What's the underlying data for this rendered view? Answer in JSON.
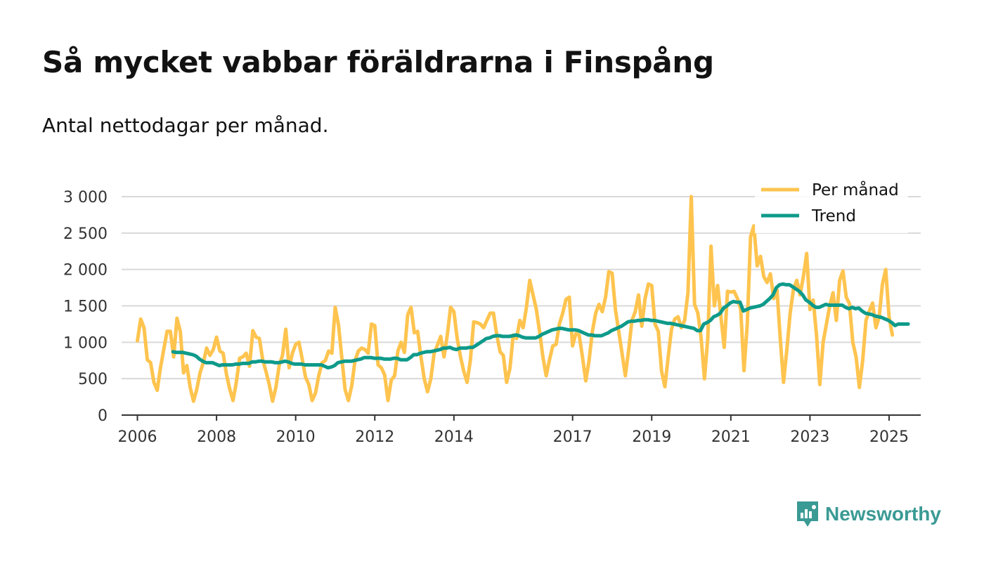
{
  "title": "Så mycket vabbar föräldrarna i Finspång",
  "subtitle": "Antal nettodagar per månad.",
  "branding": {
    "name": "Newsworthy",
    "color": "#3a9a94"
  },
  "chart_data": {
    "type": "line",
    "title": "Så mycket vabbar föräldrarna i Finspång",
    "subtitle": "Antal nettodagar per månad.",
    "xlabel": "",
    "ylabel": "",
    "ylim": [
      0,
      3000
    ],
    "yticks": [
      0,
      500,
      1000,
      1500,
      2000,
      2500,
      3000
    ],
    "ytick_labels": [
      "0",
      "500",
      "1 000",
      "1 500",
      "2 000",
      "2 500",
      "3 000"
    ],
    "xlim": [
      2005.6,
      2025.8
    ],
    "xticks": [
      2006,
      2008,
      2010,
      2012,
      2014,
      2017,
      2019,
      2021,
      2023,
      2025
    ],
    "xtick_labels": [
      "2006",
      "2008",
      "2010",
      "2012",
      "2014",
      "2017",
      "2019",
      "2021",
      "2023",
      "2025"
    ],
    "legend_position": "top-right",
    "grid": true,
    "series": [
      {
        "name": "Per månad",
        "color": "#fec44f",
        "x_start": 2006.0,
        "x_step": 0.08333,
        "values": [
          1020,
          1320,
          1200,
          760,
          720,
          450,
          340,
          650,
          900,
          1150,
          1150,
          800,
          1330,
          1150,
          580,
          680,
          380,
          190,
          350,
          580,
          720,
          920,
          820,
          900,
          1070,
          880,
          850,
          560,
          360,
          200,
          450,
          780,
          800,
          850,
          670,
          1160,
          1070,
          1050,
          760,
          600,
          420,
          190,
          380,
          680,
          820,
          1180,
          650,
          850,
          970,
          1000,
          770,
          520,
          420,
          200,
          300,
          540,
          720,
          750,
          880,
          850,
          1480,
          1240,
          790,
          350,
          200,
          400,
          750,
          880,
          920,
          900,
          850,
          1250,
          1230,
          690,
          650,
          550,
          200,
          480,
          540,
          880,
          1000,
          860,
          1380,
          1480,
          1130,
          1150,
          800,
          500,
          320,
          500,
          850,
          960,
          1080,
          800,
          1100,
          1480,
          1420,
          1050,
          800,
          600,
          450,
          750,
          1280,
          1270,
          1250,
          1200,
          1300,
          1400,
          1400,
          1100,
          870,
          820,
          450,
          640,
          1100,
          1050,
          1300,
          1200,
          1480,
          1850,
          1650,
          1450,
          1150,
          800,
          540,
          760,
          950,
          970,
          1250,
          1400,
          1590,
          1620,
          950,
          1120,
          1100,
          800,
          470,
          750,
          1150,
          1400,
          1520,
          1420,
          1620,
          1970,
          1950,
          1450,
          1150,
          850,
          540,
          890,
          1300,
          1420,
          1650,
          1220,
          1600,
          1800,
          1780,
          1250,
          1150,
          600,
          390,
          800,
          1180,
          1320,
          1350,
          1200,
          1300,
          1680,
          3000,
          1520,
          1400,
          1050,
          500,
          1050,
          2320,
          1500,
          1780,
          1350,
          930,
          1700,
          1690,
          1700,
          1600,
          1450,
          610,
          1250,
          2450,
          2600,
          2050,
          2180,
          1900,
          1820,
          1940,
          1600,
          1720,
          1050,
          450,
          900,
          1400,
          1730,
          1850,
          1650,
          1900,
          2220,
          1450,
          1580,
          1100,
          420,
          1000,
          1250,
          1500,
          1680,
          1300,
          1850,
          1980,
          1620,
          1530,
          1000,
          800,
          380,
          750,
          1300,
          1430,
          1540,
          1200,
          1350,
          1800,
          2000,
          1350,
          1100
        ]
      },
      {
        "name": "Trend",
        "color": "#0e9a8a",
        "x_start": 2006.9,
        "x_step": 0.08333,
        "values": [
          870,
          860,
          860,
          860,
          850,
          840,
          830,
          810,
          770,
          740,
          720,
          720,
          720,
          700,
          680,
          690,
          690,
          690,
          690,
          700,
          700,
          710,
          710,
          710,
          730,
          730,
          740,
          740,
          730,
          730,
          730,
          720,
          720,
          730,
          740,
          730,
          710,
          700,
          700,
          700,
          690,
          690,
          690,
          690,
          690,
          690,
          670,
          650,
          660,
          680,
          720,
          730,
          740,
          740,
          740,
          750,
          760,
          770,
          790,
          790,
          790,
          780,
          780,
          780,
          770,
          770,
          770,
          780,
          780,
          760,
          760,
          760,
          790,
          830,
          830,
          850,
          860,
          870,
          870,
          880,
          890,
          900,
          920,
          920,
          930,
          910,
          900,
          920,
          920,
          920,
          930,
          930,
          960,
          990,
          1020,
          1050,
          1060,
          1080,
          1090,
          1090,
          1080,
          1080,
          1080,
          1090,
          1100,
          1090,
          1070,
          1060,
          1060,
          1060,
          1060,
          1080,
          1110,
          1130,
          1150,
          1170,
          1180,
          1190,
          1190,
          1180,
          1170,
          1170,
          1170,
          1160,
          1140,
          1120,
          1100,
          1100,
          1090,
          1090,
          1090,
          1110,
          1130,
          1160,
          1180,
          1200,
          1220,
          1250,
          1280,
          1290,
          1290,
          1300,
          1300,
          1310,
          1310,
          1300,
          1300,
          1290,
          1280,
          1270,
          1260,
          1260,
          1250,
          1240,
          1230,
          1220,
          1210,
          1200,
          1190,
          1160,
          1160,
          1250,
          1270,
          1300,
          1350,
          1370,
          1400,
          1470,
          1500,
          1540,
          1560,
          1550,
          1550,
          1430,
          1450,
          1470,
          1480,
          1490,
          1500,
          1520,
          1560,
          1600,
          1650,
          1750,
          1790,
          1800,
          1790,
          1790,
          1760,
          1730,
          1700,
          1650,
          1580,
          1550,
          1510,
          1480,
          1480,
          1500,
          1520,
          1510,
          1510,
          1510,
          1510,
          1510,
          1480,
          1460,
          1480,
          1460,
          1470,
          1430,
          1400,
          1390,
          1380,
          1360,
          1350,
          1340,
          1320,
          1300,
          1270,
          1230,
          1250,
          1250,
          1250,
          1250
        ]
      }
    ]
  }
}
